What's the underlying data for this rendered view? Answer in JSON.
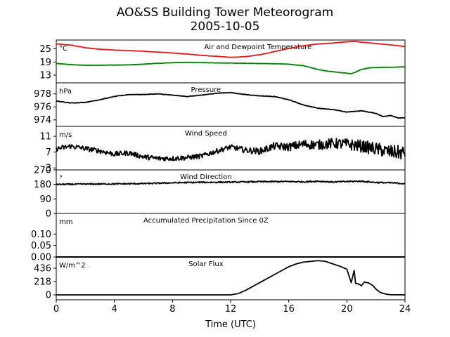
{
  "figure": {
    "title_line1": "AO&SS Building Tower Meteorogram",
    "title_line2": "2005-10-05"
  },
  "chart_data": {
    "type": "line",
    "title": "AO&SS Building Tower Meteorogram 2005-10-05",
    "xlabel": "Time (UTC)",
    "xlim": [
      0,
      24
    ],
    "xticks": [
      0,
      4,
      8,
      12,
      16,
      20,
      24
    ],
    "grid": false,
    "panels": [
      {
        "id": "temp",
        "name": "Air and Dewpoint Temperature",
        "unit": "°C",
        "ylim": [
          9.5,
          29
        ],
        "yticks": [
          13,
          19,
          25
        ],
        "series": [
          {
            "color": "#e31a1c",
            "x": [
              0,
              1,
              2,
              3,
              4,
              5,
              6,
              7,
              8,
              9,
              10,
              11,
              12,
              13,
              14,
              15,
              16,
              17,
              18,
              19,
              20,
              20.5,
              21,
              22,
              23,
              24
            ],
            "y": [
              27.2,
              26.7,
              25.5,
              24.8,
              24.4,
              24.2,
              23.9,
              23.5,
              23.1,
              22.6,
              22.0,
              21.6,
              21.1,
              21.4,
              22.3,
              23.7,
              25.2,
              26.4,
              27.2,
              27.6,
              28.2,
              28.4,
              28.0,
              27.4,
              26.8,
              26.0
            ]
          },
          {
            "color": "#008000",
            "x": [
              0,
              1,
              2,
              3,
              4,
              5,
              6,
              7,
              8,
              9,
              10,
              11,
              12,
              13,
              14,
              15,
              16,
              17,
              17.5,
              18,
              18.5,
              19,
              19.5,
              20,
              20.3,
              20.6,
              21,
              21.5,
              22,
              23,
              24
            ],
            "y": [
              18.3,
              17.8,
              17.5,
              17.5,
              17.6,
              17.7,
              18.0,
              18.4,
              18.7,
              18.8,
              18.7,
              18.6,
              18.5,
              18.4,
              18.3,
              18.2,
              18.0,
              17.3,
              16.5,
              15.6,
              15.0,
              14.6,
              14.2,
              13.9,
              13.6,
              14.4,
              15.6,
              16.3,
              16.5,
              16.6,
              16.8
            ]
          }
        ]
      },
      {
        "id": "pres",
        "name": "Pressure",
        "unit": "hPa",
        "ylim": [
          973,
          979.7
        ],
        "yticks": [
          974,
          976,
          978
        ],
        "series": [
          {
            "color": "#000000",
            "x": [
              0,
              1,
              2,
              3,
              4,
              5,
              6,
              7,
              8,
              9,
              10,
              11,
              12,
              13,
              14,
              15,
              16,
              17,
              18,
              19,
              20,
              21,
              22,
              22.5,
              23,
              23.5,
              24
            ],
            "y": [
              976.9,
              976.6,
              976.7,
              977.1,
              977.6,
              977.9,
              977.9,
              978.0,
              977.8,
              977.6,
              977.8,
              978.1,
              978.2,
              977.9,
              977.7,
              977.6,
              977.1,
              976.3,
              975.8,
              975.6,
              975.2,
              975.4,
              975.0,
              974.5,
              974.7,
              974.3,
              974.3
            ]
          }
        ]
      },
      {
        "id": "wspd",
        "name": "Wind Speed",
        "unit": "m/s",
        "ylim": [
          2.5,
          13.5
        ],
        "yticks": [
          3,
          7,
          11
        ],
        "series": [
          {
            "color": "#000000",
            "x": [
              0,
              1,
              2,
              3,
              4,
              5,
              6,
              7,
              8,
              9,
              10,
              11,
              12,
              13,
              14,
              15,
              16,
              17,
              18,
              19,
              20,
              21,
              22,
              23,
              24
            ],
            "y": [
              7.8,
              8.5,
              7.9,
              7.3,
              6.5,
              6.8,
              5.8,
              5.4,
              5.4,
              5.6,
              6.0,
              7.2,
              8.3,
              7.5,
              7.2,
              8.5,
              8.3,
              9.0,
              8.8,
              9.2,
              9.0,
              8.5,
              7.8,
              7.0,
              6.8
            ]
          }
        ]
      },
      {
        "id": "wdir",
        "name": "Wind Direction",
        "unit": "°",
        "ylim": [
          0,
          270
        ],
        "yticks": [
          0,
          90,
          180,
          270
        ],
        "series": [
          {
            "color": "#000000",
            "x": [
              0,
              2,
              4,
              6,
              8,
              10,
              12,
              14,
              16,
              17,
              18,
              19,
              20,
              21,
              22,
              23,
              24
            ],
            "y": [
              180,
              182,
              183,
              185,
              190,
              193,
              194,
              197,
              198,
              196,
              200,
              195,
              198,
              200,
              192,
              190,
              185
            ]
          }
        ]
      },
      {
        "id": "prcp",
        "name": "Accumulated Precipitation Since 0Z",
        "unit": "mm",
        "ylim": [
          0,
          0.19
        ],
        "yticks": [
          0.0,
          0.05,
          0.1
        ],
        "ytick_labels": [
          "0.00",
          "0.05",
          "0.10"
        ],
        "series": [
          {
            "color": "#000000",
            "x": [
              0,
              24
            ],
            "y": [
              0,
              0
            ]
          }
        ]
      },
      {
        "id": "solar",
        "name": "Solar Flux",
        "unit": "W/m^2",
        "ylim": [
          -80,
          620
        ],
        "yticks": [
          0,
          218,
          436
        ],
        "series": [
          {
            "color": "#000000",
            "x": [
              0,
              12,
              12.5,
              13,
              14,
              15,
              16,
              16.5,
              17,
              18,
              18.5,
              19,
              19.5,
              20,
              20.3,
              20.5,
              20.6,
              20.8,
              21,
              21.2,
              21.5,
              21.8,
              22,
              22.3,
              22.5,
              22.8,
              23,
              24
            ],
            "y": [
              0,
              0,
              20,
              70,
              200,
              330,
              460,
              505,
              535,
              560,
              550,
              510,
              470,
              420,
              200,
              400,
              190,
              180,
              150,
              210,
              195,
              150,
              95,
              40,
              25,
              8,
              3,
              0
            ]
          }
        ]
      }
    ]
  }
}
